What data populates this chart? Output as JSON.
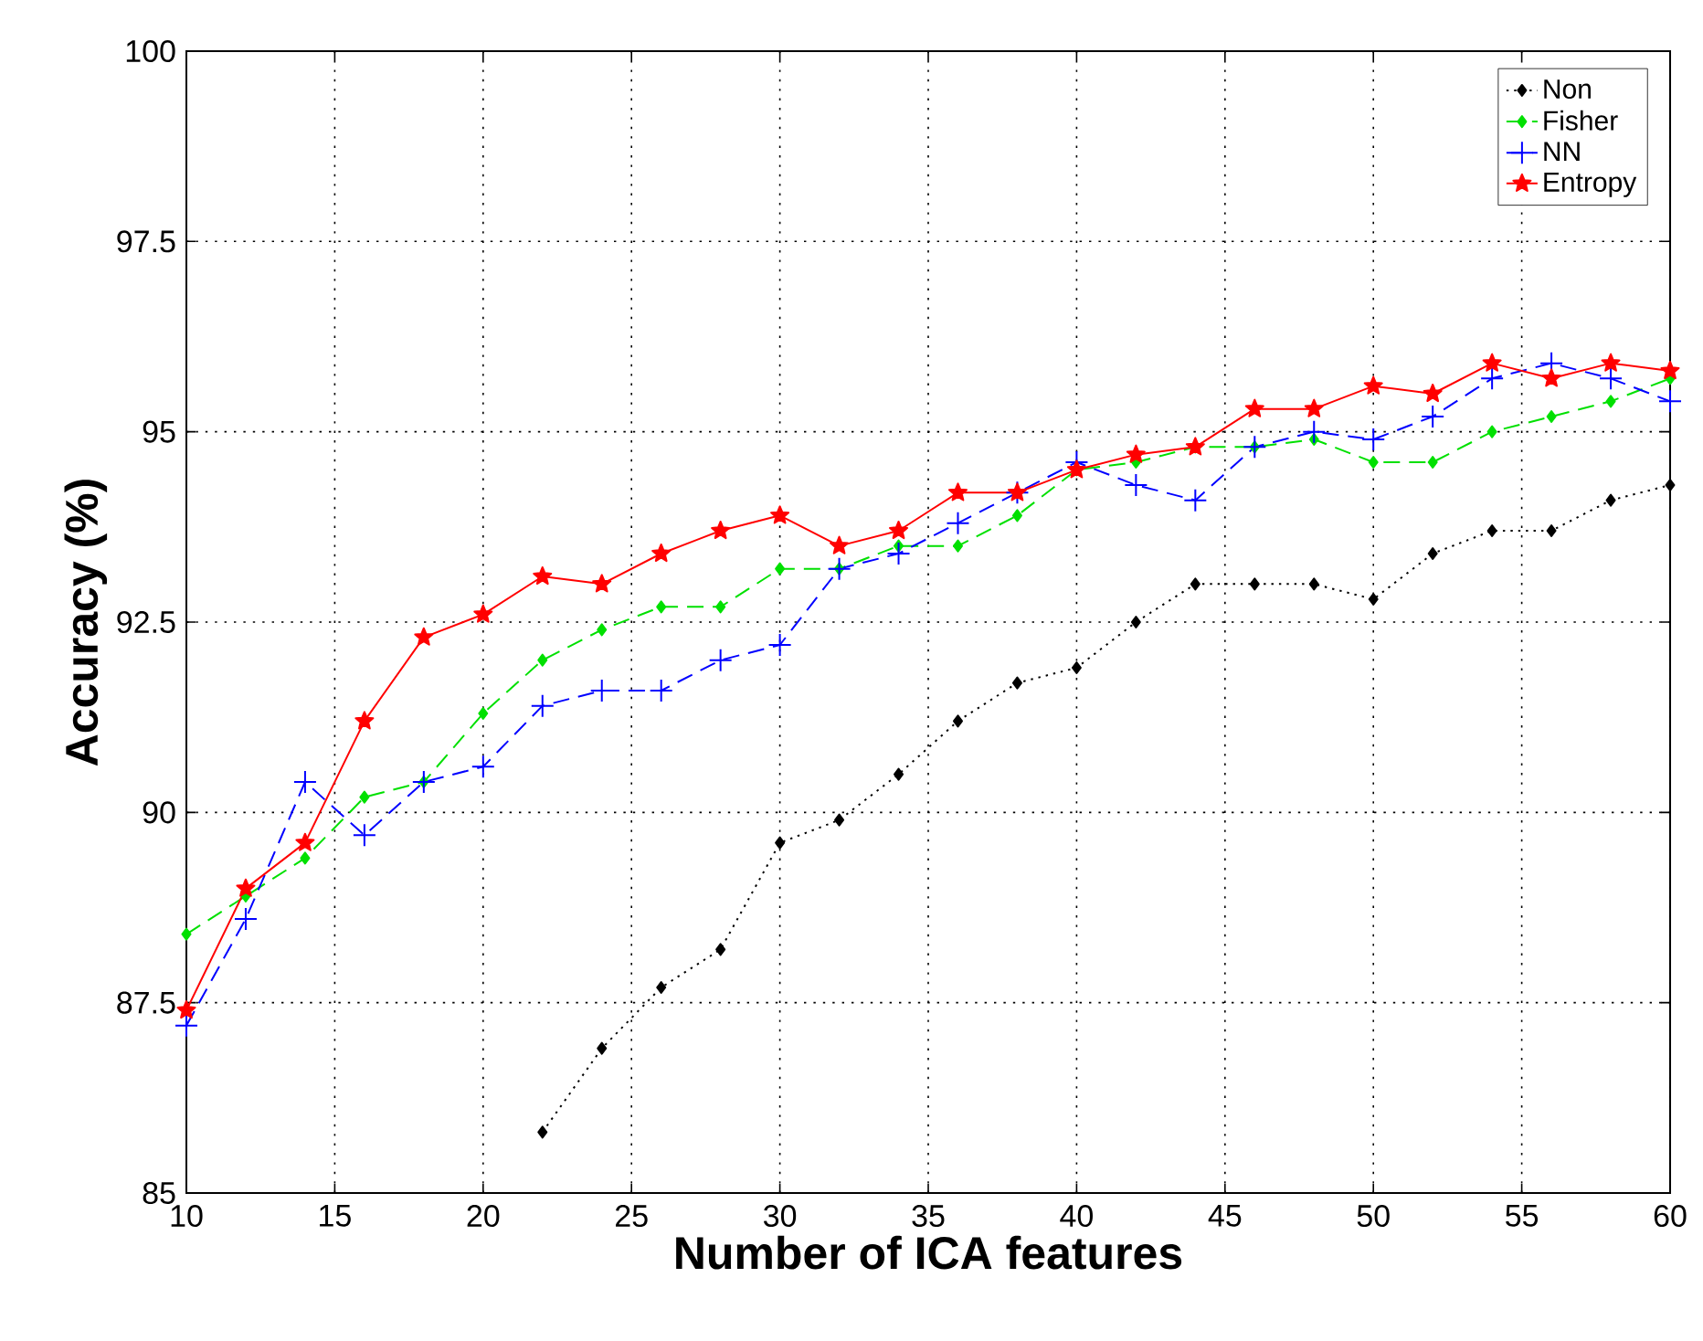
{
  "chart_data": {
    "type": "line",
    "xlabel": "Number of ICA features",
    "ylabel": "Accuracy (%)",
    "xlim": [
      10,
      60
    ],
    "ylim": [
      85,
      100
    ],
    "xticks": [
      10,
      15,
      20,
      25,
      30,
      35,
      40,
      45,
      50,
      55,
      60
    ],
    "yticks": [
      85,
      87.5,
      90,
      92.5,
      95,
      97.5,
      100
    ],
    "grid": true,
    "legend": "top right",
    "x": [
      10,
      12,
      14,
      16,
      18,
      20,
      22,
      24,
      26,
      28,
      30,
      32,
      34,
      36,
      38,
      40,
      42,
      44,
      46,
      48,
      50,
      52,
      54,
      56,
      58,
      60
    ],
    "series": [
      {
        "name": "Non",
        "color": "#000000",
        "line_style": "dotted",
        "marker": "diamond",
        "values": [
          null,
          null,
          null,
          null,
          null,
          null,
          85.8,
          86.9,
          87.7,
          88.2,
          89.6,
          89.9,
          90.5,
          91.2,
          91.7,
          91.9,
          92.5,
          93.0,
          93.0,
          93.0,
          92.8,
          93.4,
          93.7,
          93.7,
          94.1,
          94.3
        ]
      },
      {
        "name": "Fisher",
        "color": "#00e000",
        "line_style": "dashed",
        "marker": "diamond",
        "values": [
          88.4,
          88.9,
          89.4,
          90.2,
          90.4,
          91.3,
          92.0,
          92.4,
          92.7,
          92.7,
          93.2,
          93.2,
          93.5,
          93.5,
          93.9,
          94.5,
          94.6,
          94.8,
          94.8,
          94.9,
          94.6,
          94.6,
          95.0,
          95.2,
          95.4,
          95.7
        ]
      },
      {
        "name": "NN",
        "color": "#0000ff",
        "line_style": "dashed",
        "marker": "cross",
        "values": [
          87.2,
          88.6,
          90.4,
          89.7,
          90.4,
          90.6,
          91.4,
          91.6,
          91.6,
          92.0,
          92.2,
          93.2,
          93.4,
          93.8,
          94.2,
          94.6,
          94.3,
          94.1,
          94.8,
          95.0,
          94.9,
          95.2,
          95.7,
          95.9,
          95.7,
          95.4
        ]
      },
      {
        "name": "Entropy",
        "color": "#ff0000",
        "line_style": "solid",
        "marker": "star",
        "values": [
          87.4,
          89.0,
          89.6,
          91.2,
          92.3,
          92.6,
          93.1,
          93.0,
          93.4,
          93.7,
          93.9,
          93.5,
          93.7,
          94.2,
          94.2,
          94.5,
          94.7,
          94.8,
          95.3,
          95.3,
          95.6,
          95.5,
          95.9,
          95.7,
          95.9,
          95.8
        ]
      }
    ]
  }
}
